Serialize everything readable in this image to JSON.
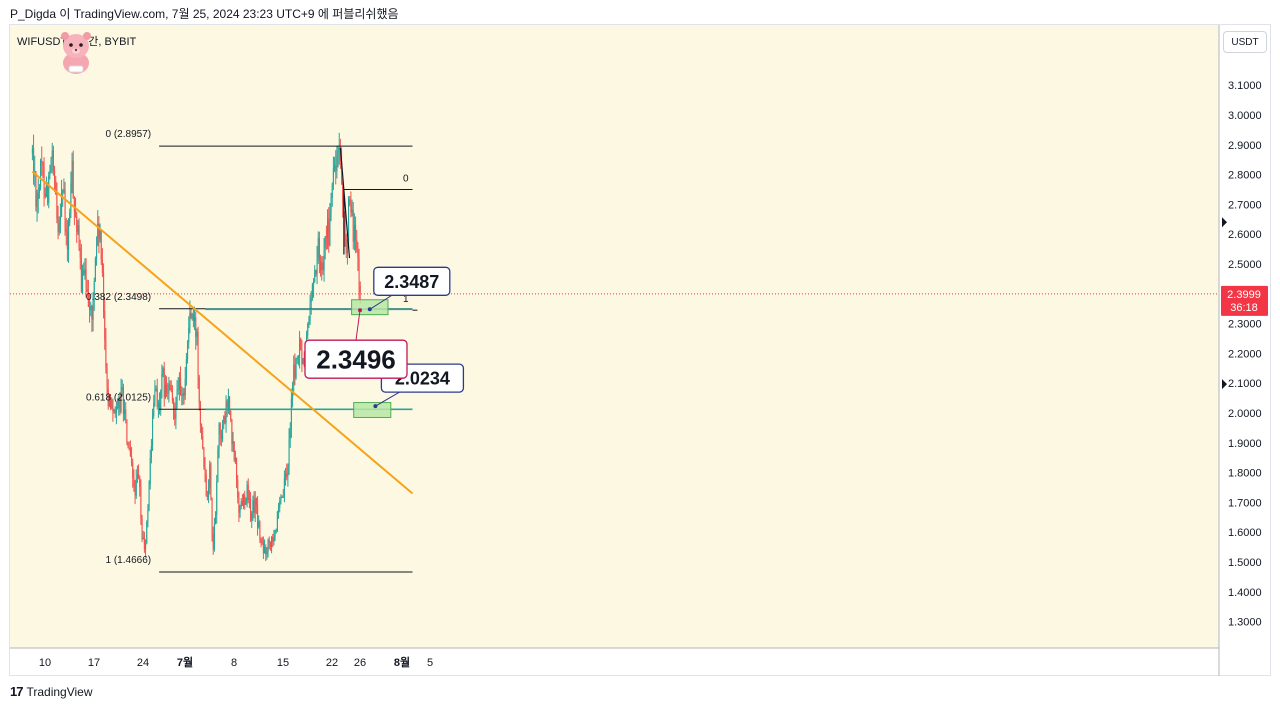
{
  "caption": "P_Digda 이 TradingView.com, 7월 25, 2024 23:23 UTC+9 에 퍼블리쉬했음",
  "symbol": "WIFUSDT, 4시간, BYBIT",
  "currency_button": "USDT",
  "footer_brand": "TradingView",
  "footer_logo_icon": "tradingview-logo-icon",
  "colors": {
    "background": "#fdf8e2",
    "up": "#26a69a",
    "down": "#ef5350",
    "trendline": "#f5a31a",
    "support_line": "#26a69a",
    "fib_line": "#131722",
    "price_label": "#f23645",
    "box_fill": "#b7e7a6",
    "box_stroke": "#4caf50",
    "callout_blue": "#2b3a8c",
    "callout_red": "#c2185b"
  },
  "chart_data": {
    "type": "candlestick",
    "timeframe": "4h",
    "y_axis": {
      "ylim": [
        1.2,
        3.15
      ],
      "ticks": [
        "3.1000",
        "3.0000",
        "2.9000",
        "2.8000",
        "2.7000",
        "2.6000",
        "2.5000",
        "2.4000",
        "2.3000",
        "2.2000",
        "2.1000",
        "2.0000",
        "1.9000",
        "1.8000",
        "1.7000",
        "1.6000",
        "1.5000",
        "1.4000",
        "1.3000"
      ]
    },
    "x_axis": {
      "ticks": [
        {
          "label": "10",
          "x": 0
        },
        {
          "label": "17",
          "x": 7
        },
        {
          "label": "24",
          "x": 14
        },
        {
          "label": "7월",
          "x": 20
        },
        {
          "label": "8",
          "x": 27
        },
        {
          "label": "15",
          "x": 34
        },
        {
          "label": "22",
          "x": 41
        },
        {
          "label": "26",
          "x": 45
        },
        {
          "label": "8월",
          "x": 51
        },
        {
          "label": "5",
          "x": 55
        }
      ]
    },
    "price_path": [
      [
        -1.8,
        2.87
      ],
      [
        -1.2,
        2.72
      ],
      [
        -0.5,
        2.82
      ],
      [
        0.3,
        2.74
      ],
      [
        1.0,
        2.85
      ],
      [
        1.8,
        2.62
      ],
      [
        2.5,
        2.77
      ],
      [
        3.2,
        2.53
      ],
      [
        3.8,
        2.82
      ],
      [
        4.4,
        2.66
      ],
      [
        5.2,
        2.45
      ],
      [
        6.0,
        2.44
      ],
      [
        6.7,
        2.3
      ],
      [
        7.3,
        2.57
      ],
      [
        7.8,
        2.62
      ],
      [
        8.5,
        2.28
      ],
      [
        9.0,
        2.03
      ],
      [
        9.6,
        2.05
      ],
      [
        10.3,
        1.98
      ],
      [
        11.0,
        2.08
      ],
      [
        11.6,
        1.93
      ],
      [
        12.2,
        1.83
      ],
      [
        12.8,
        1.74
      ],
      [
        13.4,
        1.78
      ],
      [
        13.9,
        1.57
      ],
      [
        14.4,
        1.55
      ],
      [
        14.8,
        1.74
      ],
      [
        15.3,
        1.95
      ],
      [
        15.8,
        2.1
      ],
      [
        16.3,
        2.0
      ],
      [
        16.8,
        2.12
      ],
      [
        17.3,
        2.05
      ],
      [
        17.8,
        2.09
      ],
      [
        18.4,
        1.99
      ],
      [
        19.0,
        2.12
      ],
      [
        19.6,
        2.02
      ],
      [
        20.2,
        2.18
      ],
      [
        20.7,
        2.34
      ],
      [
        21.2,
        2.3
      ],
      [
        21.7,
        2.26
      ],
      [
        22.1,
        2.02
      ],
      [
        22.6,
        1.88
      ],
      [
        23.1,
        1.73
      ],
      [
        23.6,
        1.82
      ],
      [
        24.0,
        1.52
      ],
      [
        24.4,
        1.7
      ],
      [
        24.8,
        1.96
      ],
      [
        25.3,
        1.93
      ],
      [
        25.8,
        2.0
      ],
      [
        26.2,
        2.05
      ],
      [
        26.7,
        1.9
      ],
      [
        27.2,
        1.83
      ],
      [
        27.7,
        1.68
      ],
      [
        28.3,
        1.71
      ],
      [
        28.8,
        1.74
      ],
      [
        29.4,
        1.66
      ],
      [
        30.0,
        1.7
      ],
      [
        30.6,
        1.6
      ],
      [
        31.2,
        1.53
      ],
      [
        31.8,
        1.56
      ],
      [
        32.4,
        1.59
      ],
      [
        33.0,
        1.62
      ],
      [
        33.6,
        1.68
      ],
      [
        34.2,
        1.75
      ],
      [
        34.7,
        1.82
      ],
      [
        35.2,
        2.06
      ],
      [
        35.6,
        2.14
      ],
      [
        36.0,
        2.18
      ],
      [
        36.5,
        2.22
      ],
      [
        37.0,
        2.13
      ],
      [
        37.5,
        2.28
      ],
      [
        38.0,
        2.39
      ],
      [
        38.5,
        2.46
      ],
      [
        39.0,
        2.55
      ],
      [
        39.6,
        2.48
      ],
      [
        40.0,
        2.64
      ],
      [
        40.5,
        2.59
      ],
      [
        41.0,
        2.73
      ],
      [
        41.3,
        2.86
      ],
      [
        41.6,
        2.8
      ],
      [
        41.9,
        2.88
      ],
      [
        42.2,
        2.82
      ],
      [
        42.6,
        2.63
      ],
      [
        43.0,
        2.55
      ],
      [
        43.4,
        2.68
      ],
      [
        43.8,
        2.64
      ],
      [
        44.2,
        2.61
      ],
      [
        44.6,
        2.52
      ],
      [
        44.9,
        2.4
      ],
      [
        45.1,
        2.4
      ]
    ],
    "trendline": {
      "x": [
        -1.8,
        52.5
      ],
      "y": [
        2.81,
        1.73
      ]
    },
    "support_lines": [
      {
        "y": 2.348,
        "x": [
          22.9,
          52.5
        ]
      },
      {
        "y": 2.0125,
        "x": [
          22.9,
          52.5
        ]
      }
    ],
    "fibonacci": {
      "x_start": 16.3,
      "x_end": 52.5,
      "levels": [
        {
          "label": "0 (2.8957)",
          "value": 2.8957
        },
        {
          "label": "0.382 (2.3498)",
          "value": 2.3498
        },
        {
          "label": "0.618 (2.0125)",
          "value": 2.0125
        },
        {
          "label": "1 (1.4666)",
          "value": 1.4666
        }
      ]
    },
    "second_fib": {
      "top_label": "0",
      "bottom_label": "1",
      "top_value": 2.75,
      "bottom_value": 2.345,
      "x_start": 42.7,
      "x_end": 52.5
    },
    "zones": [
      {
        "x": [
          43.8,
          49.0
        ],
        "y": [
          2.33,
          2.38
        ]
      },
      {
        "x": [
          44.1,
          49.4
        ],
        "y": [
          1.985,
          2.035
        ]
      }
    ],
    "callouts": [
      {
        "text": "2.3487",
        "anchor": [
          46.4,
          2.348
        ],
        "style": "blue"
      },
      {
        "text": "2.0234",
        "anchor": [
          47.2,
          2.023
        ],
        "style": "blue"
      },
      {
        "text": "2.3496",
        "anchor": [
          45.0,
          2.345
        ],
        "style": "red"
      }
    ],
    "last_price": "2.3999",
    "countdown": "36:18",
    "last_price_value": 2.3999
  }
}
